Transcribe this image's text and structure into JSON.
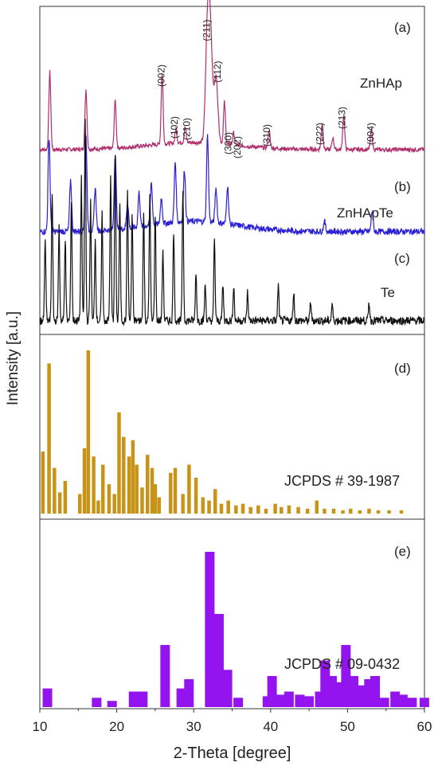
{
  "chart_data": {
    "type": "line",
    "xlabel": "2-Theta [degree]",
    "ylabel": "Intensity [a.u.]",
    "xlim": [
      10,
      60
    ],
    "xticks": [
      "10",
      "20",
      "30",
      "40",
      "50",
      "60"
    ],
    "panels": [
      {
        "letters": [
          "(a)",
          "(b)",
          "(c)"
        ],
        "series": [
          {
            "name": "ZnHAp",
            "color": "#b0306e",
            "baseline": 0.8,
            "peaks": [
              [
                11.3,
                0.65
              ],
              [
                16.0,
                0.5
              ],
              [
                19.8,
                0.4
              ],
              [
                25.9,
                0.58
              ],
              [
                27.7,
                0.12
              ],
              [
                28.9,
                0.13
              ],
              [
                31.8,
                0.95
              ],
              [
                32.2,
                0.8
              ],
              [
                32.9,
                0.55
              ],
              [
                34.0,
                0.35
              ],
              [
                35.2,
                0.1
              ],
              [
                39.8,
                0.15
              ],
              [
                46.7,
                0.22
              ],
              [
                48.1,
                0.1
              ],
              [
                49.5,
                0.28
              ],
              [
                53.1,
                0.16
              ]
            ]
          },
          {
            "name": "ZnHApTe",
            "color": "#2a1fd6",
            "baseline": 0.4,
            "peaks": [
              [
                11.2,
                0.55
              ],
              [
                14.0,
                0.3
              ],
              [
                16.0,
                0.55
              ],
              [
                17.2,
                0.25
              ],
              [
                19.8,
                0.45
              ],
              [
                21.4,
                0.15
              ],
              [
                22.9,
                0.2
              ],
              [
                24.5,
                0.25
              ],
              [
                25.8,
                0.15
              ],
              [
                27.6,
                0.35
              ],
              [
                28.8,
                0.3
              ],
              [
                31.8,
                0.5
              ],
              [
                32.9,
                0.2
              ],
              [
                34.4,
                0.22
              ],
              [
                47.0,
                0.06
              ],
              [
                53.2,
                0.12
              ]
            ]
          },
          {
            "name": "Te",
            "color": "#111111",
            "baseline": 0.02,
            "peaks": [
              [
                10.7,
                0.35
              ],
              [
                11.6,
                0.55
              ],
              [
                12.5,
                0.4
              ],
              [
                13.3,
                0.35
              ],
              [
                14.1,
                0.5
              ],
              [
                15.4,
                0.6
              ],
              [
                15.9,
                0.85
              ],
              [
                16.6,
                0.5
              ],
              [
                17.2,
                0.35
              ],
              [
                18.1,
                0.45
              ],
              [
                19.2,
                0.6
              ],
              [
                19.8,
                0.7
              ],
              [
                20.4,
                0.5
              ],
              [
                21.4,
                0.55
              ],
              [
                22.0,
                0.45
              ],
              [
                23.5,
                0.45
              ],
              [
                24.3,
                0.55
              ],
              [
                25.0,
                0.45
              ],
              [
                26.0,
                0.3
              ],
              [
                27.4,
                0.38
              ],
              [
                28.6,
                0.55
              ],
              [
                30.3,
                0.2
              ],
              [
                31.5,
                0.15
              ],
              [
                32.7,
                0.35
              ],
              [
                33.8,
                0.15
              ],
              [
                35.2,
                0.15
              ],
              [
                37.0,
                0.12
              ],
              [
                41.0,
                0.15
              ],
              [
                43.0,
                0.12
              ],
              [
                45.2,
                0.08
              ],
              [
                48.0,
                0.07
              ],
              [
                52.8,
                0.08
              ]
            ]
          }
        ],
        "hkl_labels": [
          {
            "text": "(002)",
            "x": 25.9
          },
          {
            "text": "(102)",
            "x": 27.6
          },
          {
            "text": "(210)",
            "x": 29.2
          },
          {
            "text": "(211)",
            "x": 31.8
          },
          {
            "text": "(112)",
            "x": 33.2
          },
          {
            "text": "(300)",
            "x": 34.6
          },
          {
            "text": "(202)",
            "x": 35.8
          },
          {
            "text": "(310)",
            "x": 39.6
          },
          {
            "text": "(222)",
            "x": 46.5
          },
          {
            "text": "(213)",
            "x": 49.4
          },
          {
            "text": "(004)",
            "x": 53.1
          }
        ]
      },
      {
        "letter": "(d)",
        "label": "JCPDS # 39-1987",
        "color": "#c89418",
        "bars": [
          [
            10.4,
            0.38
          ],
          [
            11.2,
            0.92
          ],
          [
            11.9,
            0.28
          ],
          [
            12.6,
            0.13
          ],
          [
            13.3,
            0.2
          ],
          [
            15.2,
            0.12
          ],
          [
            15.8,
            0.4
          ],
          [
            16.3,
            1.0
          ],
          [
            17.0,
            0.35
          ],
          [
            17.6,
            0.08
          ],
          [
            18.2,
            0.3
          ],
          [
            19.0,
            0.18
          ],
          [
            19.7,
            0.12
          ],
          [
            20.3,
            0.62
          ],
          [
            20.9,
            0.47
          ],
          [
            21.6,
            0.35
          ],
          [
            22.1,
            0.45
          ],
          [
            22.6,
            0.3
          ],
          [
            23.3,
            0.16
          ],
          [
            24.0,
            0.36
          ],
          [
            24.6,
            0.28
          ],
          [
            25.0,
            0.18
          ],
          [
            25.5,
            0.1
          ],
          [
            27.0,
            0.25
          ],
          [
            27.6,
            0.28
          ],
          [
            28.6,
            0.12
          ],
          [
            29.4,
            0.3
          ],
          [
            30.3,
            0.22
          ],
          [
            31.2,
            0.1
          ],
          [
            32.0,
            0.08
          ],
          [
            32.8,
            0.15
          ],
          [
            33.6,
            0.06
          ],
          [
            34.5,
            0.08
          ],
          [
            35.5,
            0.05
          ],
          [
            36.4,
            0.06
          ],
          [
            37.4,
            0.04
          ],
          [
            38.4,
            0.05
          ],
          [
            39.4,
            0.03
          ],
          [
            40.6,
            0.06
          ],
          [
            41.4,
            0.04
          ],
          [
            42.4,
            0.05
          ],
          [
            43.6,
            0.04
          ],
          [
            44.8,
            0.03
          ],
          [
            46.0,
            0.08
          ],
          [
            47.0,
            0.03
          ],
          [
            48.2,
            0.03
          ],
          [
            49.4,
            0.02
          ],
          [
            50.4,
            0.03
          ],
          [
            51.6,
            0.02
          ],
          [
            52.8,
            0.03
          ],
          [
            54.0,
            0.02
          ],
          [
            55.4,
            0.02
          ],
          [
            57.0,
            0.02
          ]
        ]
      },
      {
        "letter": "(e)",
        "label": "JCPDS # 09-0432",
        "color": "#9414f0",
        "bars": [
          [
            10.6,
            0.12
          ],
          [
            17.0,
            0.06
          ],
          [
            19.0,
            0.04
          ],
          [
            21.8,
            0.1
          ],
          [
            23.0,
            0.1
          ],
          [
            25.9,
            0.4
          ],
          [
            28.0,
            0.12
          ],
          [
            29.0,
            0.18
          ],
          [
            31.7,
            1.0
          ],
          [
            32.9,
            0.6
          ],
          [
            34.0,
            0.24
          ],
          [
            35.4,
            0.06
          ],
          [
            39.2,
            0.07
          ],
          [
            39.8,
            0.2
          ],
          [
            40.8,
            0.08
          ],
          [
            42.0,
            0.1
          ],
          [
            43.4,
            0.08
          ],
          [
            44.6,
            0.07
          ],
          [
            46.0,
            0.1
          ],
          [
            46.7,
            0.3
          ],
          [
            47.6,
            0.2
          ],
          [
            48.4,
            0.16
          ],
          [
            49.4,
            0.4
          ],
          [
            50.4,
            0.2
          ],
          [
            51.4,
            0.14
          ],
          [
            52.4,
            0.18
          ],
          [
            53.2,
            0.2
          ],
          [
            54.4,
            0.06
          ],
          [
            55.8,
            0.1
          ],
          [
            56.8,
            0.08
          ],
          [
            58.0,
            0.06
          ],
          [
            59.6,
            0.06
          ]
        ]
      }
    ],
    "grid": false
  }
}
